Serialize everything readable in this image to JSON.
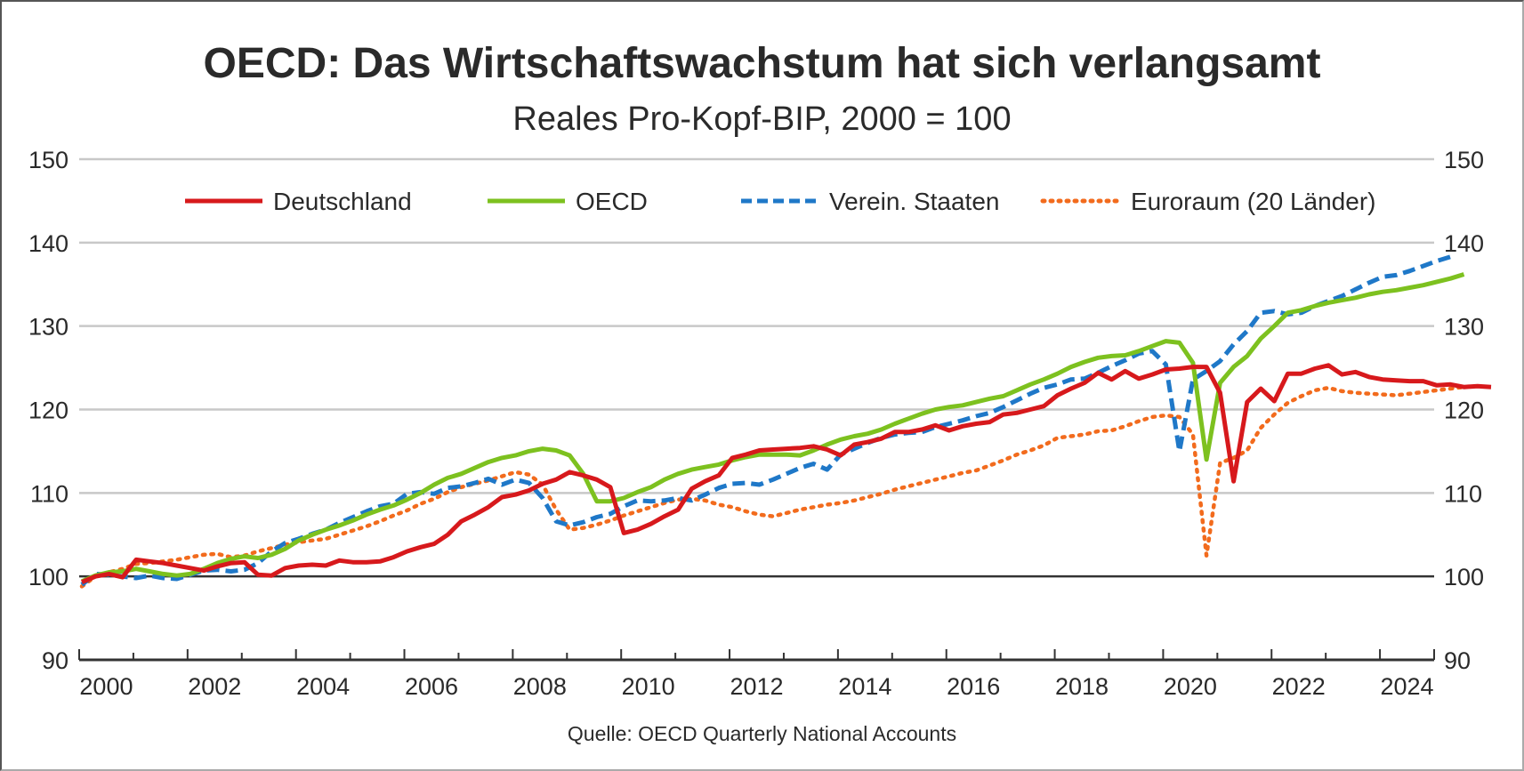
{
  "chart_data": {
    "type": "line",
    "title": "OECD: Das Wirtschaftswachstum hat sich verlangsamt",
    "subtitle": "Reales Pro-Kopf-BIP, 2000 = 100",
    "source": "Quelle: OECD Quarterly National Accounts",
    "xlabel": "",
    "ylabel": "",
    "ylim": [
      90,
      150
    ],
    "yticks": [
      90,
      100,
      110,
      120,
      130,
      140,
      150
    ],
    "ytick_labels": [
      "90",
      "100",
      "110",
      "120",
      "130",
      "140",
      "150"
    ],
    "xlim": [
      2000,
      2025
    ],
    "xticks": [
      2000,
      2002,
      2004,
      2006,
      2008,
      2010,
      2012,
      2014,
      2016,
      2018,
      2020,
      2022,
      2024
    ],
    "xtick_labels": [
      "2000",
      "2002",
      "2004",
      "2006",
      "2008",
      "2010",
      "2012",
      "2014",
      "2016",
      "2018",
      "2020",
      "2022",
      "2024"
    ],
    "grid": true,
    "reference_line": 100,
    "legend_position": "top",
    "x_frequency": "quarterly",
    "x_start": 2000.0,
    "series": [
      {
        "name": "Deutschland",
        "color": "#d7191c",
        "style": "solid",
        "values": [
          99.3,
          100.0,
          100.3,
          99.9,
          102.0,
          101.8,
          101.6,
          101.3,
          101.0,
          100.7,
          101.2,
          101.6,
          101.7,
          100.2,
          100.1,
          101.0,
          101.3,
          101.4,
          101.3,
          101.9,
          101.7,
          101.7,
          101.8,
          102.3,
          103.0,
          103.5,
          103.9,
          105.0,
          106.6,
          107.4,
          108.3,
          109.5,
          109.8,
          110.3,
          111.1,
          111.6,
          112.5,
          112.1,
          111.6,
          110.7,
          105.2,
          105.6,
          106.3,
          107.2,
          108.0,
          110.5,
          111.4,
          112.1,
          114.2,
          114.6,
          115.1,
          115.2,
          115.3,
          115.4,
          115.6,
          115.2,
          114.5,
          115.8,
          116.1,
          116.5,
          117.3,
          117.3,
          117.6,
          118.1,
          117.5,
          118.0,
          118.3,
          118.5,
          119.4,
          119.6,
          120.0,
          120.4,
          121.7,
          122.5,
          123.2,
          124.4,
          123.6,
          124.6,
          123.7,
          124.2,
          124.8,
          124.9,
          125.1,
          125.1,
          122.0,
          111.4,
          120.9,
          122.5,
          121.0,
          124.3,
          124.3,
          124.9,
          125.3,
          124.2,
          124.5,
          123.9,
          123.6,
          123.5,
          123.4,
          123.4,
          122.9,
          123.0,
          122.7,
          122.8,
          122.7
        ]
      },
      {
        "name": "OECD",
        "color": "#7dc11f",
        "style": "solid",
        "values": [
          99.4,
          100.1,
          100.5,
          100.6,
          100.9,
          100.6,
          100.3,
          100.1,
          100.3,
          100.9,
          101.6,
          102.1,
          102.4,
          102.2,
          102.6,
          103.3,
          104.3,
          105.0,
          105.6,
          106.1,
          106.7,
          107.4,
          108.0,
          108.5,
          109.2,
          110.0,
          111.0,
          111.8,
          112.3,
          113.0,
          113.7,
          114.2,
          114.5,
          115.0,
          115.3,
          115.1,
          114.5,
          112.3,
          109.0,
          109.0,
          109.4,
          110.1,
          110.7,
          111.6,
          112.3,
          112.8,
          113.1,
          113.4,
          113.9,
          114.3,
          114.6,
          114.6,
          114.6,
          114.5,
          115.1,
          115.8,
          116.4,
          116.8,
          117.1,
          117.6,
          118.3,
          118.9,
          119.5,
          120.0,
          120.3,
          120.5,
          120.9,
          121.3,
          121.6,
          122.3,
          123.0,
          123.6,
          124.3,
          125.1,
          125.7,
          126.2,
          126.4,
          126.5,
          127.0,
          127.6,
          128.2,
          128.0,
          125.6,
          114.0,
          123.2,
          125.1,
          126.4,
          128.5,
          130.0,
          131.6,
          131.9,
          132.4,
          132.8,
          133.1,
          133.4,
          133.8,
          134.1,
          134.3,
          134.6,
          134.9,
          135.3,
          135.7,
          136.2
        ]
      },
      {
        "name": "Verein. Staaten",
        "color": "#1f78c8",
        "style": "dashed",
        "values": [
          99.0,
          100.3,
          100.2,
          100.0,
          99.8,
          100.1,
          99.8,
          99.7,
          100.2,
          100.7,
          100.8,
          100.6,
          100.8,
          101.6,
          103.0,
          104.0,
          104.5,
          105.1,
          105.6,
          106.4,
          107.1,
          107.8,
          108.4,
          108.7,
          109.9,
          110.1,
          109.9,
          110.6,
          110.8,
          111.2,
          111.7,
          111.0,
          111.6,
          111.2,
          109.4,
          106.6,
          106.1,
          106.5,
          107.1,
          107.5,
          108.4,
          109.1,
          109.0,
          109.1,
          109.4,
          109.1,
          109.8,
          110.6,
          111.1,
          111.2,
          111.0,
          111.6,
          112.3,
          113.0,
          113.5,
          112.8,
          114.6,
          115.3,
          116.0,
          116.6,
          117.0,
          117.2,
          117.3,
          117.9,
          118.3,
          118.7,
          119.2,
          119.6,
          120.3,
          121.1,
          121.9,
          122.6,
          123.0,
          123.6,
          123.7,
          124.4,
          125.2,
          125.9,
          126.7,
          127.0,
          125.4,
          115.0,
          123.6,
          124.6,
          125.8,
          127.8,
          129.4,
          131.6,
          131.8,
          131.4,
          131.6,
          132.4,
          133.0,
          133.6,
          134.4,
          135.2,
          135.9,
          136.1,
          136.6,
          137.2,
          137.8,
          138.3
        ]
      },
      {
        "name": "Euroraum (20 Länder)",
        "color": "#f26b1d",
        "style": "dotted",
        "values": [
          98.8,
          100.0,
          100.5,
          100.9,
          101.5,
          101.6,
          101.8,
          102.0,
          102.3,
          102.6,
          102.7,
          102.3,
          102.5,
          103.0,
          103.4,
          103.8,
          104.1,
          104.3,
          104.5,
          105.0,
          105.5,
          106.0,
          106.6,
          107.3,
          107.9,
          108.7,
          109.3,
          110.1,
          110.7,
          111.1,
          111.5,
          112.0,
          112.5,
          112.2,
          111.0,
          108.0,
          105.6,
          105.8,
          106.2,
          106.7,
          107.3,
          107.8,
          108.3,
          108.8,
          109.2,
          109.3,
          109.1,
          108.6,
          108.3,
          107.8,
          107.4,
          107.2,
          107.6,
          108.0,
          108.3,
          108.6,
          108.8,
          109.1,
          109.5,
          109.9,
          110.4,
          110.8,
          111.2,
          111.6,
          112.0,
          112.4,
          112.7,
          113.3,
          113.9,
          114.6,
          115.1,
          115.7,
          116.6,
          116.8,
          117.0,
          117.4,
          117.5,
          118.0,
          118.6,
          119.1,
          119.3,
          119.1,
          117.0,
          102.5,
          113.6,
          114.2,
          115.1,
          117.8,
          119.4,
          120.8,
          121.6,
          122.3,
          122.6,
          122.2,
          122.0,
          121.9,
          121.8,
          121.7,
          121.9,
          122.1,
          122.3,
          122.5,
          122.7
        ]
      }
    ]
  }
}
